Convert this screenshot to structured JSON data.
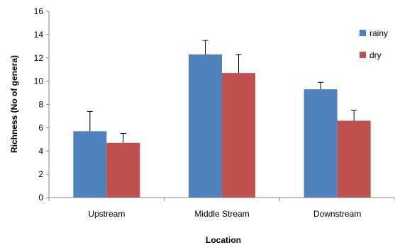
{
  "chart_data": {
    "type": "bar",
    "categories": [
      "Upstream",
      "Middle Stream",
      "Downstream"
    ],
    "series": [
      {
        "name": "rainy",
        "color": "#4f81bd",
        "values": [
          5.7,
          12.3,
          9.3
        ],
        "errors": [
          1.7,
          1.2,
          0.6
        ]
      },
      {
        "name": "dry",
        "color": "#c0504d",
        "values": [
          4.7,
          10.7,
          6.6
        ],
        "errors": [
          0.8,
          1.6,
          0.9
        ]
      }
    ],
    "xlabel": "Location",
    "ylabel": "Richness (No of genera)",
    "ylim": [
      0,
      16
    ],
    "yticks": [
      "0",
      "2",
      "4",
      "6",
      "8",
      "10",
      "12",
      "14",
      "16"
    ],
    "grid": false,
    "legend_position": "right"
  }
}
